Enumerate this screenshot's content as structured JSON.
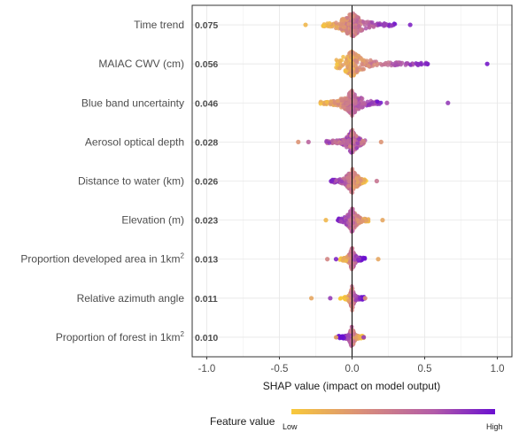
{
  "chart_data": {
    "type": "scatter",
    "subtype": "shap-beeswarm",
    "xlabel": "SHAP value (impact on model output)",
    "xlim": [
      -1.1,
      1.1
    ],
    "xticks": [
      -1.0,
      -0.5,
      0.0,
      0.5,
      1.0
    ],
    "xtick_labels": [
      "-1.0",
      "-0.5",
      "0.0",
      "0.5",
      "1.0"
    ],
    "grid": true,
    "features": [
      {
        "label": "Time trend",
        "superscript": "",
        "importance": "0.075",
        "min": -0.33,
        "max": 0.4,
        "core": [
          -0.2,
          0.3
        ],
        "spread": 0.05,
        "outliers": [
          [
            0.4,
            0.9
          ],
          [
            -0.32,
            0.1
          ]
        ],
        "direction": 1
      },
      {
        "label": "MAIAC CWV (cm)",
        "superscript": "",
        "importance": "0.056",
        "min": -0.21,
        "max": 0.93,
        "core": [
          -0.12,
          0.52
        ],
        "spread": 0.03,
        "outliers": [
          [
            0.93,
            0.95
          ],
          [
            0.52,
            0.9
          ]
        ],
        "direction": 1
      },
      {
        "label": "Blue band uncertainty",
        "superscript": "",
        "importance": "0.046",
        "min": -0.31,
        "max": 0.66,
        "core": [
          -0.22,
          0.2
        ],
        "spread": 0.04,
        "outliers": [
          [
            0.66,
            0.8
          ],
          [
            0.24,
            0.7
          ]
        ],
        "direction": 1
      },
      {
        "label": "Aerosol optical depth",
        "superscript": "",
        "importance": "0.028",
        "min": -0.37,
        "max": 0.2,
        "core": [
          -0.18,
          0.08
        ],
        "spread": 0.05,
        "outliers": [
          [
            -0.37,
            0.3
          ],
          [
            -0.3,
            0.6
          ],
          [
            0.2,
            0.3
          ]
        ],
        "direction": 0
      },
      {
        "label": "Distance to water (km)",
        "superscript": "",
        "importance": "0.026",
        "min": -0.25,
        "max": 0.17,
        "core": [
          -0.15,
          0.1
        ],
        "spread": 0.05,
        "outliers": [
          [
            0.17,
            0.5
          ]
        ],
        "direction": -1
      },
      {
        "label": "Elevation (m)",
        "superscript": "",
        "importance": "0.023",
        "min": -0.18,
        "max": 0.21,
        "core": [
          -0.1,
          0.12
        ],
        "spread": 0.04,
        "outliers": [
          [
            -0.18,
            0.1
          ],
          [
            0.21,
            0.2
          ]
        ],
        "direction": -1
      },
      {
        "label": "Proportion developed area in 1km",
        "superscript": "2",
        "importance": "0.013",
        "min": -0.18,
        "max": 0.18,
        "core": [
          -0.06,
          0.06
        ],
        "spread": 0.06,
        "outliers": [
          [
            -0.17,
            0.4
          ],
          [
            -0.11,
            0.9
          ],
          [
            0.18,
            0.2
          ]
        ],
        "direction": 1
      },
      {
        "label": "Relative azimuth angle",
        "superscript": "",
        "importance": "0.011",
        "min": -0.28,
        "max": 0.09,
        "core": [
          -0.04,
          0.05
        ],
        "spread": 0.05,
        "outliers": [
          [
            -0.28,
            0.2
          ],
          [
            -0.15,
            0.8
          ],
          [
            0.09,
            0.3
          ]
        ],
        "direction": 1
      },
      {
        "label": "Proportion of forest in 1km",
        "superscript": "2",
        "importance": "0.010",
        "min": -0.11,
        "max": 0.08,
        "core": [
          -0.05,
          0.05
        ],
        "spread": 0.06,
        "outliers": [
          [
            0.08,
            0.8
          ],
          [
            -0.11,
            0.2
          ]
        ],
        "direction": -1
      }
    ],
    "legend": {
      "title": "Feature value",
      "low_label": "Low",
      "high_label": "High",
      "position": "bottom",
      "colors": [
        "#F8C93A",
        "#D98E7A",
        "#B25BA8",
        "#6A0FD0"
      ]
    },
    "colors": {
      "low": "#F8C93A",
      "high": "#6A0FD0",
      "grid": "#e6e6e6",
      "zero_line": "#000000",
      "panel_border": "#333333"
    }
  }
}
